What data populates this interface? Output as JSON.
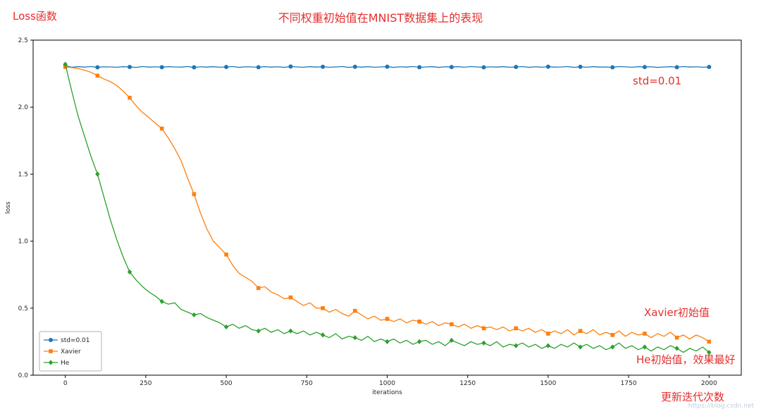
{
  "colors": {
    "annotation": "#e62e2e",
    "series_blue": "#1f77b4",
    "series_orange": "#ff7f0e",
    "series_green": "#2ca02c"
  },
  "annotations": {
    "loss_label": "Loss函数",
    "title": "不同权重初始值在MNIST数据集上的表现",
    "std_label": "std=0.01",
    "xavier_label": "Xavier初始值",
    "he_label": "He初始值，效果最好",
    "iterations_label": "更新迭代次数",
    "watermark": "https://blog.csdn.net"
  },
  "chart_data": {
    "type": "line",
    "title": "不同权重初始值在MNIST数据集上的表现",
    "xlabel": "iterations",
    "ylabel": "loss",
    "xlim": [
      -100,
      2100
    ],
    "ylim": [
      0,
      2.5
    ],
    "x_ticks": [
      0,
      250,
      500,
      750,
      1000,
      1250,
      1500,
      1750,
      2000
    ],
    "y_ticks": [
      0.0,
      0.5,
      1.0,
      1.5,
      2.0,
      2.5
    ],
    "grid": false,
    "legend_position": "lower-left",
    "x_start": 0,
    "x_step": 20,
    "series": [
      {
        "name": "std=0.01",
        "color": "#1f77b4",
        "marker": "circle",
        "marker_every": 5,
        "values": [
          2.31,
          2.298,
          2.302,
          2.299,
          2.303,
          2.297,
          2.301,
          2.3,
          2.298,
          2.302,
          2.3,
          2.297,
          2.303,
          2.299,
          2.301,
          2.298,
          2.302,
          2.3,
          2.299,
          2.303,
          2.297,
          2.301,
          2.299,
          2.302,
          2.298,
          2.3,
          2.303,
          2.297,
          2.301,
          2.3,
          2.298,
          2.302,
          2.299,
          2.301,
          2.297,
          2.303,
          2.3,
          2.298,
          2.302,
          2.299,
          2.301,
          2.298,
          2.3,
          2.303,
          2.297,
          2.301,
          2.299,
          2.302,
          2.298,
          2.3,
          2.302,
          2.297,
          2.301,
          2.299,
          2.303,
          2.298,
          2.3,
          2.302,
          2.297,
          2.301,
          2.299,
          2.302,
          2.298,
          2.303,
          2.3,
          2.297,
          2.301,
          2.299,
          2.302,
          2.298,
          2.3,
          2.303,
          2.297,
          2.301,
          2.298,
          2.302,
          2.299,
          2.3,
          2.303,
          2.297,
          2.301,
          2.298,
          2.302,
          2.299,
          2.3,
          2.297,
          2.303,
          2.301,
          2.298,
          2.302,
          2.299,
          2.301,
          2.297,
          2.3,
          2.302,
          2.298,
          2.303,
          2.299,
          2.301,
          2.298,
          2.3
        ]
      },
      {
        "name": "Xavier",
        "color": "#ff7f0e",
        "marker": "square",
        "marker_every": 5,
        "values": [
          2.3,
          2.295,
          2.288,
          2.275,
          2.26,
          2.235,
          2.21,
          2.19,
          2.16,
          2.12,
          2.07,
          2.01,
          1.96,
          1.92,
          1.88,
          1.84,
          1.77,
          1.69,
          1.6,
          1.47,
          1.35,
          1.21,
          1.09,
          1.0,
          0.95,
          0.9,
          0.82,
          0.76,
          0.73,
          0.7,
          0.65,
          0.66,
          0.62,
          0.6,
          0.57,
          0.58,
          0.55,
          0.52,
          0.54,
          0.5,
          0.5,
          0.47,
          0.49,
          0.46,
          0.44,
          0.48,
          0.45,
          0.42,
          0.44,
          0.41,
          0.42,
          0.4,
          0.42,
          0.39,
          0.41,
          0.4,
          0.38,
          0.4,
          0.37,
          0.39,
          0.38,
          0.36,
          0.38,
          0.35,
          0.37,
          0.35,
          0.36,
          0.34,
          0.36,
          0.33,
          0.35,
          0.33,
          0.35,
          0.32,
          0.34,
          0.31,
          0.33,
          0.31,
          0.34,
          0.3,
          0.33,
          0.31,
          0.34,
          0.3,
          0.32,
          0.3,
          0.33,
          0.29,
          0.32,
          0.3,
          0.31,
          0.28,
          0.31,
          0.29,
          0.32,
          0.28,
          0.3,
          0.27,
          0.3,
          0.28,
          0.25
        ]
      },
      {
        "name": "He",
        "color": "#2ca02c",
        "marker": "diamond",
        "marker_every": 5,
        "values": [
          2.32,
          2.12,
          1.93,
          1.78,
          1.63,
          1.5,
          1.33,
          1.16,
          1.01,
          0.88,
          0.77,
          0.71,
          0.66,
          0.62,
          0.59,
          0.55,
          0.53,
          0.54,
          0.49,
          0.47,
          0.45,
          0.46,
          0.43,
          0.41,
          0.39,
          0.36,
          0.38,
          0.35,
          0.37,
          0.34,
          0.33,
          0.35,
          0.32,
          0.34,
          0.31,
          0.33,
          0.31,
          0.33,
          0.3,
          0.32,
          0.3,
          0.28,
          0.31,
          0.27,
          0.29,
          0.28,
          0.26,
          0.29,
          0.25,
          0.27,
          0.25,
          0.27,
          0.24,
          0.26,
          0.23,
          0.25,
          0.26,
          0.23,
          0.25,
          0.22,
          0.26,
          0.24,
          0.22,
          0.25,
          0.23,
          0.24,
          0.22,
          0.25,
          0.21,
          0.23,
          0.22,
          0.24,
          0.21,
          0.23,
          0.2,
          0.22,
          0.2,
          0.23,
          0.21,
          0.24,
          0.21,
          0.23,
          0.2,
          0.22,
          0.19,
          0.21,
          0.24,
          0.2,
          0.22,
          0.19,
          0.21,
          0.18,
          0.21,
          0.19,
          0.22,
          0.2,
          0.17,
          0.2,
          0.18,
          0.21,
          0.17
        ]
      }
    ]
  }
}
